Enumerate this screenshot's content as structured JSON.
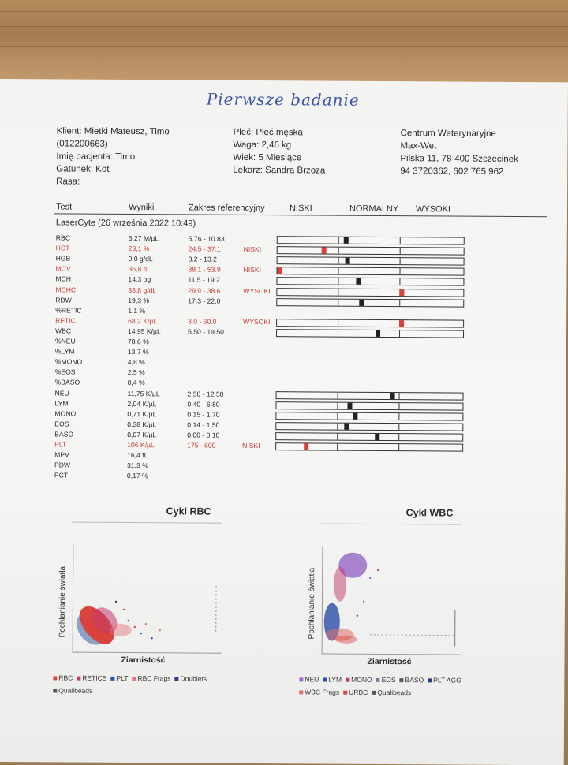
{
  "handwritten_title": "Pierwsze badanie",
  "client": {
    "line1": "Klient: Mietki Mateusz, Timo",
    "line2": "(012200663)",
    "line3": "Imię pacjenta: Timo",
    "line4": "Gatunek: Kot",
    "line5": "Rasa:"
  },
  "patient": {
    "line1": "Płeć: Płeć męska",
    "line2": "Waga: 2,46 kg",
    "line3": "Wiek: 5 Miesiące",
    "line4": "Lekarz: Sandra Brzoza"
  },
  "clinic": {
    "line1": "Centrum Weterynaryjne",
    "line2": "Max-Wet",
    "line3": "Pilska 11, 78-400 Szczecinek",
    "line4": "94 3720362, 602 765 962"
  },
  "table_header": {
    "test": "Test",
    "results": "Wyniki",
    "range": "Zakres referencyjny",
    "low": "NISKI",
    "normal": "NORMALNY",
    "high": "WYSOKI"
  },
  "section": "LaserCyte (26 września 2022 10:49)",
  "rows": [
    {
      "test": "RBC",
      "value": "6,27 M/µL",
      "range": "5.76 - 10.83",
      "flag": "",
      "bar": 0.36
    },
    {
      "test": "HCT",
      "value": "23,1 %",
      "range": "24.5 - 37.1",
      "flag": "NISKI",
      "bar": 0.24
    },
    {
      "test": "HGB",
      "value": "9,0 g/dL",
      "range": "8.2 - 13.2",
      "flag": "",
      "bar": 0.37
    },
    {
      "test": "MCV",
      "value": "36,8 fL",
      "range": "38.1 - 53.9",
      "flag": "NISKI",
      "bar": 0.0
    },
    {
      "test": "MCH",
      "value": "14,3 pg",
      "range": "11.5 - 19.2",
      "flag": "",
      "bar": 0.43
    },
    {
      "test": "MCHC",
      "value": "38,8 g/dL",
      "range": "29.9 - 38.6",
      "flag": "WYSOKI",
      "bar": 0.67
    },
    {
      "test": "RDW",
      "value": "19,3 %",
      "range": "17.3 - 22.0",
      "flag": "",
      "bar": 0.45
    },
    {
      "test": "%RETIC",
      "value": "1,1 %",
      "range": "",
      "flag": "",
      "bar": null
    },
    {
      "test": "RETIC",
      "value": "68,2 K/µL",
      "range": "3.0 - 50.0",
      "flag": "WYSOKI",
      "bar": 0.67
    },
    {
      "test": "WBC",
      "value": "14,95 K/µL",
      "range": "5.50 - 19.50",
      "flag": "",
      "bar": 0.54
    },
    {
      "test": "%NEU",
      "value": "78,6 %",
      "range": "",
      "flag": "",
      "bar": null
    },
    {
      "test": "%LYM",
      "value": "13,7 %",
      "range": "",
      "flag": "",
      "bar": null
    },
    {
      "test": "%MONO",
      "value": "4,8 %",
      "range": "",
      "flag": "",
      "bar": null
    },
    {
      "test": "%EOS",
      "value": "2,5 %",
      "range": "",
      "flag": "",
      "bar": null
    },
    {
      "test": "%BASO",
      "value": "0,4 %",
      "range": "",
      "flag": "",
      "bar": null
    },
    {
      "test": "NEU",
      "value": "11,75 K/µL",
      "range": "2.50 - 12.50",
      "flag": "",
      "bar": 0.62
    },
    {
      "test": "LYM",
      "value": "2,04 K/µL",
      "range": "0.40 - 6.80",
      "flag": "",
      "bar": 0.39
    },
    {
      "test": "MONO",
      "value": "0,71 K/µL",
      "range": "0.15 - 1.70",
      "flag": "",
      "bar": 0.42
    },
    {
      "test": "EOS",
      "value": "0,38 K/µL",
      "range": "0.14 - 1.50",
      "flag": "",
      "bar": 0.37
    },
    {
      "test": "BASO",
      "value": "0,07 K/µL",
      "range": "0.00 - 0.10",
      "flag": "",
      "bar": 0.54
    },
    {
      "test": "PLT",
      "value": "106 K/µL",
      "range": "175 - 600",
      "flag": "NISKI",
      "bar": 0.15
    },
    {
      "test": "MPV",
      "value": "16,4 fL",
      "range": "",
      "flag": "",
      "bar": null
    },
    {
      "test": "PDW",
      "value": "31,3 %",
      "range": "",
      "flag": "",
      "bar": null
    },
    {
      "test": "PCT",
      "value": "0,17 %",
      "range": "",
      "flag": "",
      "bar": null
    }
  ],
  "rbc_plot": {
    "title": "Cykl RBC",
    "ylabel": "Pochłanianie światła",
    "xlabel": "Ziarnistość",
    "legend": [
      {
        "label": "RBC",
        "color": "#d9433c"
      },
      {
        "label": "RETICS",
        "color": "#c23a6e"
      },
      {
        "label": "PLT",
        "color": "#2a4fa8"
      },
      {
        "label": "RBC Frags",
        "color": "#e0707a"
      },
      {
        "label": "Doublets",
        "color": "#2a3f7a"
      },
      {
        "label": "Qualibeads",
        "color": "#555555"
      }
    ]
  },
  "wbc_plot": {
    "title": "Cykl WBC",
    "ylabel": "Pochłanianie światła",
    "xlabel": "Ziarnistość",
    "legend": [
      {
        "label": "NEU",
        "color": "#9a6fc9"
      },
      {
        "label": "LYM",
        "color": "#2a4fa8"
      },
      {
        "label": "MONO",
        "color": "#c23a6e"
      },
      {
        "label": "EOS",
        "color": "#6f7fa0"
      },
      {
        "label": "BASO",
        "color": "#5a5a5a"
      },
      {
        "label": "PLT AGG",
        "color": "#2a3f7a"
      },
      {
        "label": "WBC Frags",
        "color": "#e07070"
      },
      {
        "label": "URBC",
        "color": "#d9433c"
      },
      {
        "label": "Qualibeads",
        "color": "#555555"
      }
    ]
  }
}
